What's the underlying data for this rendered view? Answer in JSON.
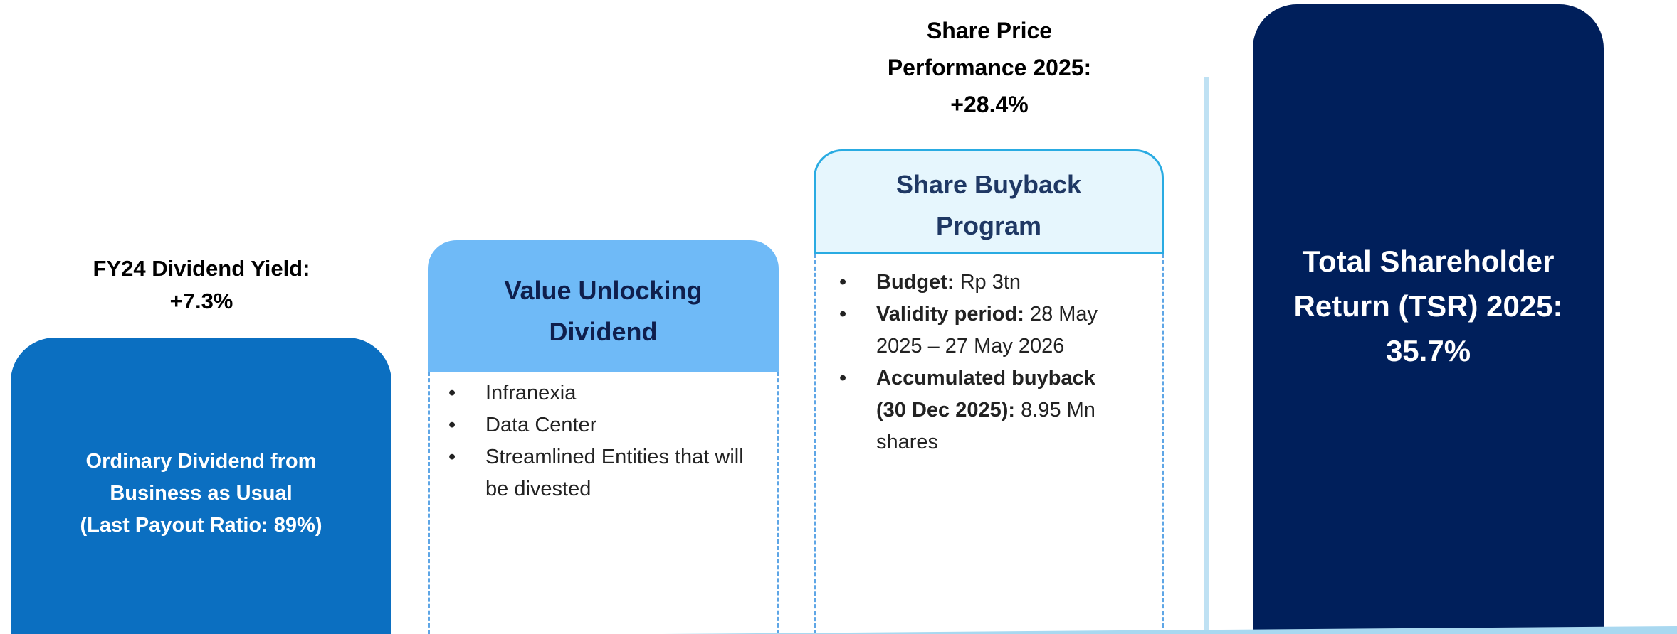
{
  "dividend_yield": {
    "lines": [
      "FY24 Dividend Yield:",
      "+7.3%"
    ]
  },
  "ordinary_dividend": {
    "lines": [
      "Ordinary Dividend from",
      "Business as Usual",
      "(Last Payout Ratio: 89%)"
    ]
  },
  "value_unlocking": {
    "title_lines": [
      "Value Unlocking",
      "Dividend"
    ],
    "bullets": [
      "Infranexia",
      "Data Center",
      "Streamlined Entities that will be divested"
    ]
  },
  "share_price": {
    "lines": [
      "Share Price",
      "Performance 2025:",
      "+28.4%"
    ]
  },
  "share_buyback": {
    "title_lines": [
      "Share Buyback",
      "Program"
    ],
    "bullets": [
      {
        "label": "Budget:",
        "text": "Rp 3tn"
      },
      {
        "label": "Validity period:",
        "text": "28 May 2025 – 27 May 2026"
      },
      {
        "label": "Accumulated buyback (30 Dec 2025):",
        "text": "8.95 Mn shares"
      }
    ]
  },
  "tsr": {
    "lines": [
      "Total Shareholder",
      "Return (TSR) 2025:",
      "35.7%"
    ]
  }
}
